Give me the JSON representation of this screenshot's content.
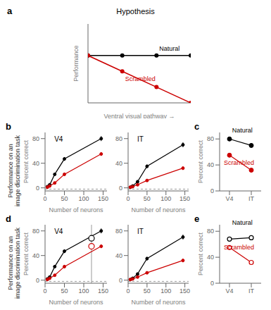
{
  "chart_data": [
    {
      "type": "line",
      "title": "Hypothesis",
      "xlabel": "Ventral visual pathway →",
      "ylabel": "Performance",
      "x": [
        0,
        1,
        2,
        3
      ],
      "xlim": [
        0,
        3
      ],
      "ylim": [
        -6,
        4
      ],
      "tick_labels": false,
      "series": [
        {
          "name": "Natural",
          "color": "#000000",
          "marker": "circle",
          "values": [
            0,
            0,
            0,
            0
          ]
        },
        {
          "name": "Scrambled",
          "color": "#cc0000",
          "marker": "circle",
          "values": [
            0,
            -2,
            -4,
            -6
          ]
        }
      ],
      "annotations": [
        "a"
      ]
    },
    {
      "type": "line",
      "title": "V4",
      "xlabel": "Number of neurons",
      "ylabel": "Percent correct",
      "x": [
        6,
        12,
        25,
        50,
        145
      ],
      "xlim": [
        0,
        160
      ],
      "xticks": [
        0,
        50,
        100,
        150
      ],
      "ylim": [
        -5,
        90
      ],
      "yticks": [
        0,
        40,
        80
      ],
      "chance_y": -2,
      "series": [
        {
          "color": "#000000",
          "marker": "circle",
          "values": [
            2,
            5,
            22,
            47,
            80
          ],
          "error": [
            0.5,
            1,
            2,
            3,
            4
          ]
        },
        {
          "color": "#cc0000",
          "marker": "circle",
          "values": [
            1,
            3,
            8,
            22,
            55
          ],
          "error": [
            0.5,
            1,
            1.5,
            2.5,
            3
          ]
        }
      ],
      "annotations": [
        "b",
        "Performance on an\nimage discrimination task"
      ]
    },
    {
      "type": "line",
      "title": "IT",
      "xlabel": "Number of neurons",
      "x": [
        6,
        12,
        25,
        50,
        145
      ],
      "xlim": [
        0,
        160
      ],
      "xticks": [
        0,
        50,
        100,
        150
      ],
      "ylim": [
        -5,
        90
      ],
      "yticks": [
        0,
        40,
        80
      ],
      "chance_y": -2,
      "series": [
        {
          "color": "#000000",
          "marker": "circle",
          "values": [
            1,
            3,
            10,
            35,
            70
          ],
          "error": [
            0.5,
            1,
            2,
            3,
            4
          ]
        },
        {
          "color": "#cc0000",
          "marker": "circle",
          "values": [
            1,
            2,
            5,
            12,
            32
          ],
          "error": [
            0.5,
            0.8,
            1.2,
            2,
            3
          ]
        }
      ]
    },
    {
      "type": "line",
      "ylabel": "Percent correct",
      "categories": [
        "V4",
        "IT"
      ],
      "ylim": [
        0,
        90
      ],
      "yticks": [
        0,
        40,
        80
      ],
      "series": [
        {
          "name": "Natural",
          "color": "#000000",
          "marker": "circle",
          "values": [
            80,
            70
          ]
        },
        {
          "name": "Scrambled",
          "color": "#cc0000",
          "marker": "circle",
          "values": [
            55,
            32
          ]
        }
      ],
      "annotations": [
        "c"
      ]
    },
    {
      "type": "line",
      "title": "V4",
      "xlabel": "Number of neurons",
      "ylabel": "Percent correct",
      "x": [
        6,
        12,
        25,
        50,
        145
      ],
      "xlim": [
        0,
        160
      ],
      "xticks": [
        0,
        50,
        100,
        150
      ],
      "ylim": [
        -5,
        90
      ],
      "yticks": [
        0,
        40,
        80
      ],
      "chance_y": -2,
      "vline_x": 120,
      "open_points": [
        {
          "x": 120,
          "y": 68,
          "color": "#000000"
        },
        {
          "x": 120,
          "y": 55,
          "color": "#cc0000"
        }
      ],
      "series": [
        {
          "color": "#000000",
          "marker": "circle",
          "values": [
            2,
            5,
            22,
            47,
            80
          ],
          "error": [
            0.5,
            1,
            2,
            3,
            4
          ]
        },
        {
          "color": "#cc0000",
          "marker": "circle",
          "values": [
            1,
            3,
            8,
            22,
            55
          ],
          "error": [
            0.5,
            1,
            1.5,
            2.5,
            3
          ]
        }
      ],
      "annotations": [
        "d",
        "Performance on an\nimage discrimination task"
      ]
    },
    {
      "type": "line",
      "title": "IT",
      "xlabel": "Number of neurons",
      "x": [
        6,
        12,
        25,
        50,
        145
      ],
      "xlim": [
        0,
        160
      ],
      "xticks": [
        0,
        50,
        100,
        150
      ],
      "ylim": [
        -5,
        90
      ],
      "yticks": [
        0,
        40,
        80
      ],
      "chance_y": -2,
      "series": [
        {
          "color": "#000000",
          "marker": "circle",
          "values": [
            1,
            3,
            10,
            35,
            70
          ],
          "error": [
            0.5,
            1,
            2,
            3,
            4
          ]
        },
        {
          "color": "#cc0000",
          "marker": "circle",
          "values": [
            1,
            2,
            5,
            12,
            32
          ],
          "error": [
            0.5,
            0.8,
            1.2,
            2,
            3
          ]
        }
      ]
    },
    {
      "type": "line",
      "ylabel": "Percent correct",
      "categories": [
        "V4",
        "IT"
      ],
      "ylim": [
        0,
        90
      ],
      "yticks": [
        0,
        40,
        80
      ],
      "series": [
        {
          "name": "Natural",
          "color": "#000000",
          "marker": "open_circle",
          "values": [
            68,
            70
          ]
        },
        {
          "name": "Scrambled",
          "color": "#cc0000",
          "marker": "open_circle",
          "values": [
            55,
            32
          ]
        }
      ],
      "annotations": [
        "e"
      ]
    }
  ]
}
